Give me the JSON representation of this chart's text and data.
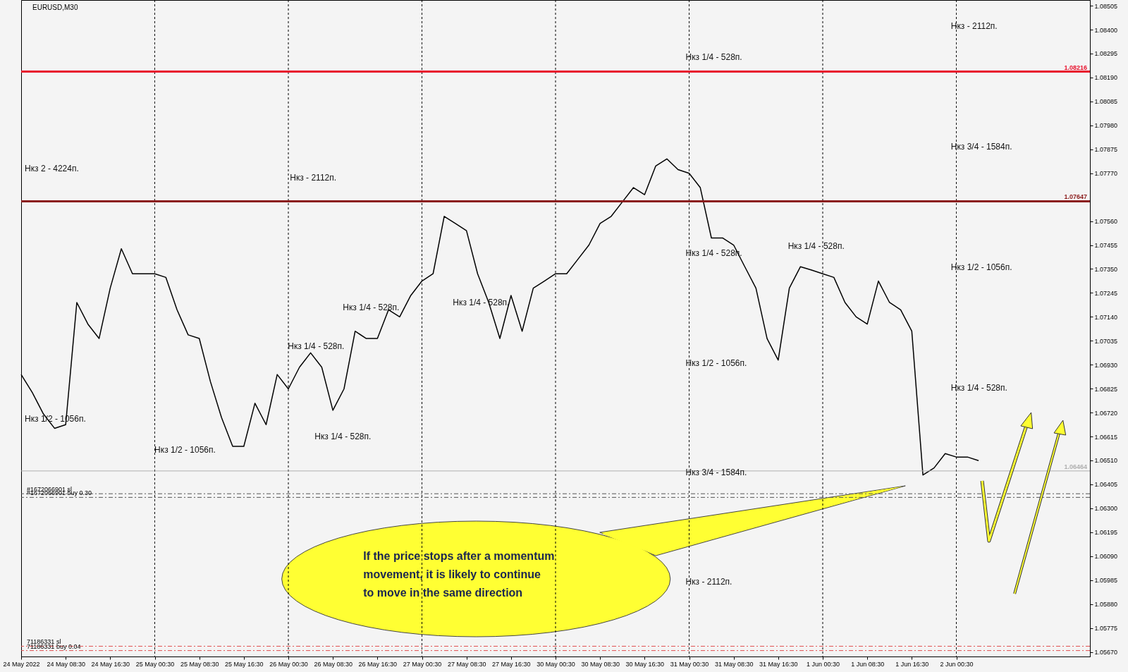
{
  "chart_data": {
    "type": "line",
    "title": "EURUSD,M30",
    "categories": [
      "24 May 2022",
      null,
      null,
      null,
      "24 May 08:30",
      null,
      null,
      null,
      "24 May 16:30",
      null,
      null,
      null,
      "25 May 00:30",
      null,
      null,
      null,
      "25 May 08:30",
      null,
      null,
      null,
      "25 May 16:30",
      null,
      null,
      null,
      "26 May 00:30",
      null,
      null,
      null,
      "26 May 08:30",
      null,
      null,
      null,
      "26 May 16:30",
      null,
      null,
      null,
      "27 May 00:30",
      null,
      null,
      null,
      "27 May 08:30",
      null,
      null,
      null,
      "27 May 16:30",
      null,
      null,
      null,
      "30 May 00:30",
      null,
      null,
      null,
      "30 May 08:30",
      null,
      null,
      null,
      "30 May 16:30",
      null,
      null,
      null,
      "31 May 00:30",
      null,
      null,
      null,
      "31 May 08:30",
      null,
      null,
      null,
      "31 May 16:30",
      null,
      null,
      null,
      "1 Jun 00:30",
      null,
      null,
      null,
      "1 Jun 08:30",
      null,
      null,
      null,
      "1 Jun 16:30",
      null,
      null,
      null,
      "2 Jun 00:30",
      null,
      null,
      null,
      null,
      null,
      null,
      null,
      null,
      null,
      null,
      null,
      null
    ],
    "values": [
      1.06887,
      1.06808,
      1.06714,
      1.06651,
      1.06667,
      1.07203,
      1.07108,
      1.07045,
      1.07266,
      1.07439,
      1.07329,
      1.07329,
      1.07329,
      1.07313,
      1.07171,
      1.07061,
      1.07045,
      1.06856,
      1.06698,
      1.06572,
      1.06572,
      1.06761,
      1.06667,
      1.06887,
      1.06824,
      1.06919,
      1.06982,
      1.06919,
      1.0673,
      1.06824,
      1.07077,
      1.07045,
      1.07045,
      1.07171,
      1.0714,
      1.07234,
      1.07297,
      1.07329,
      1.07581,
      1.0755,
      1.07518,
      1.07329,
      1.07203,
      1.07045,
      1.07234,
      1.07077,
      1.07266,
      1.07297,
      1.07329,
      1.07329,
      1.07392,
      1.07455,
      1.0755,
      1.07581,
      1.07644,
      1.07707,
      1.07676,
      1.07802,
      1.07833,
      1.07786,
      1.0777,
      1.07707,
      1.07486,
      1.07486,
      1.07455,
      1.0736,
      1.07266,
      1.07045,
      1.0695,
      1.07266,
      1.0736,
      1.07345,
      1.07329,
      1.07313,
      1.07203,
      1.0714,
      1.07108,
      1.07297,
      1.07203,
      1.07171,
      1.07077,
      1.06446,
      1.06477,
      1.0654,
      1.06525,
      1.06525,
      1.06509,
      null,
      null,
      null,
      null,
      null,
      null,
      null,
      null,
      null,
      null
    ],
    "color": "#000000",
    "ylim": [
      1.0565,
      1.0853
    ],
    "yticks": [
      {
        "value": 1.0567,
        "label": "1.05670"
      },
      1.05775,
      {
        "value": 1.0588,
        "label": "1.05880"
      },
      1.05985,
      {
        "value": 1.0609,
        "label": "1.06090"
      },
      1.06195,
      {
        "value": 1.063,
        "label": "1.06300"
      },
      1.06405,
      {
        "value": 1.0651,
        "label": "1.06510"
      },
      1.06615,
      {
        "value": 1.0672,
        "label": "1.06720"
      },
      1.06825,
      {
        "value": 1.0693,
        "label": "1.06930"
      },
      1.07035,
      {
        "value": 1.0714,
        "label": "1.07140"
      },
      1.07245,
      {
        "value": 1.0735,
        "label": "1.07350"
      },
      1.07455,
      {
        "value": 1.0756,
        "label": "1.07560"
      },
      {
        "value": 1.0777,
        "label": "1.07770"
      },
      1.07875,
      {
        "value": 1.0798,
        "label": "1.07980"
      },
      1.08085,
      {
        "value": 1.0819,
        "label": "1.08190"
      },
      1.08295,
      {
        "value": 1.084,
        "label": "1.08400"
      },
      1.08505
    ],
    "grid": "x",
    "ref_lines": [
      {
        "axis": "y",
        "value": 1.08216,
        "label": "1.08216",
        "color": "#e8112d"
      },
      {
        "axis": "y",
        "value": 1.07647,
        "label": "1.07647",
        "color": "#8b1a1a"
      },
      {
        "axis": "y",
        "value": 1.06464,
        "label": "1.06464",
        "color": "#b0b0b0"
      },
      {
        "axis": "y",
        "value": 1.06364,
        "label": "#1672066901 sl",
        "color": "#555555",
        "line_style": "dashed"
      },
      {
        "axis": "y",
        "value": 1.06348,
        "label": "#1672066901 buy 0.30",
        "color": "#555555",
        "line_style": "dashed"
      },
      {
        "axis": "y",
        "value": 1.05695,
        "label": "71186331 sl",
        "color": "#e05050",
        "line_style": "dashed"
      },
      {
        "axis": "y",
        "value": 1.05676,
        "label": "71186331 buy 0.04",
        "color": "#e05050",
        "line_style": "dashed"
      }
    ],
    "annotations": [
      "Нкз 2 - 4224п.",
      "Нкз - 2112п.",
      "Нкз 1/4 - 528п.",
      "Нкз - 2112п.",
      "Нкз 3/4 - 1584п.",
      "Нкз 1/2 - 1056п.",
      "Нкз 1/4 - 528п.",
      "Нкз 1/4 - 528п.",
      "Нкз 1/4 - 528п.",
      "Нкз 1/2 - 1056п.",
      "Нкз 3/4 - 1584п.",
      "Нкз - 2112п.",
      "Нкз 1/4 - 528п.",
      "Нкз 1/4 - 528п.",
      "Нкз 1/4 - 528п.",
      "Нкз 1/4 - 528п.",
      "Нкз 1/2 - 1056п.",
      "Нкз 1/2 - 1056п.",
      "If the price stops after a momentum movement, it is likely to continue to move in the same direction"
    ]
  }
}
